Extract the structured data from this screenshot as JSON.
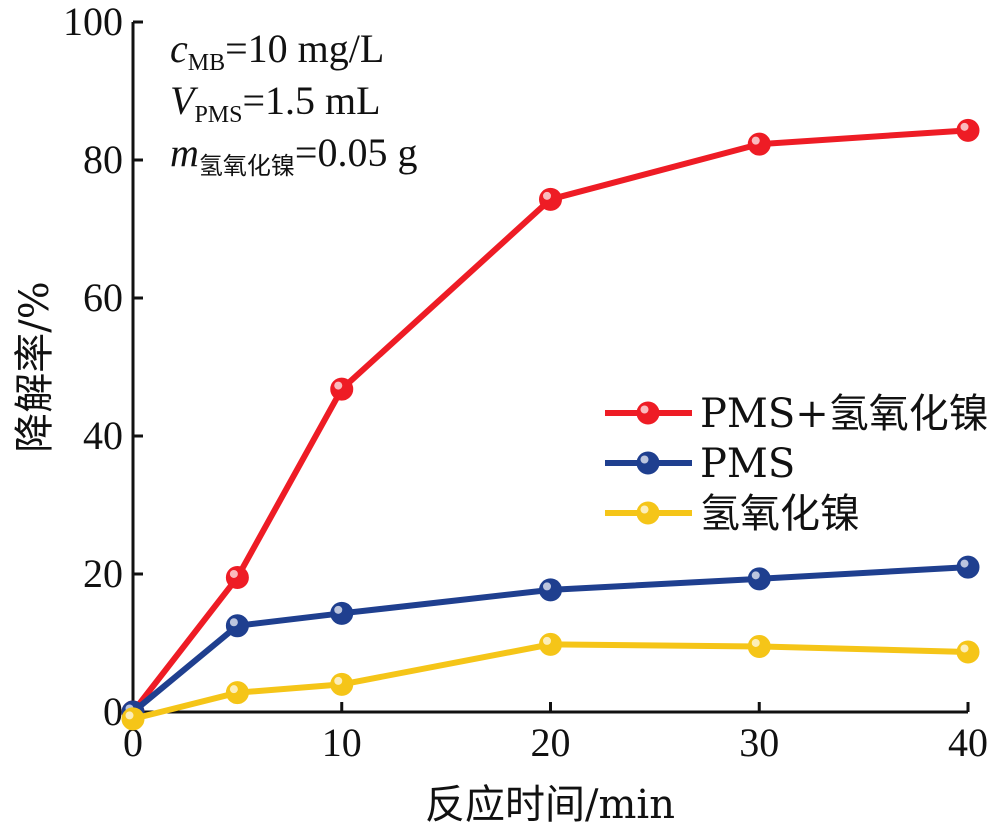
{
  "chart_data": {
    "type": "line",
    "xlabel": "反应时间/min",
    "ylabel": "降解率/%",
    "xlim": [
      0,
      40
    ],
    "ylim": [
      0,
      100
    ],
    "xticks": [
      "0",
      "10",
      "20",
      "30",
      "40"
    ],
    "yticks": [
      "0",
      "20",
      "40",
      "60",
      "80",
      "100"
    ],
    "grid": false,
    "legend_position": "center-right",
    "annotations": [
      {
        "var": "c",
        "sub": "MB",
        "rest": "=10 mg/L"
      },
      {
        "var": "V",
        "sub": "PMS",
        "rest": "=1.5 mL"
      },
      {
        "var": "m",
        "sub": "氢氧化镍",
        "rest": "=0.05 g"
      }
    ],
    "series": [
      {
        "name": "PMS+氢氧化镍",
        "color": "#ee1c25",
        "x": [
          0,
          5,
          10,
          20,
          30,
          40
        ],
        "y": [
          0,
          19.5,
          46.8,
          74.3,
          82.3,
          84.3
        ]
      },
      {
        "name": "PMS",
        "color": "#1f3f8f",
        "x": [
          0,
          5,
          10,
          20,
          30,
          40
        ],
        "y": [
          0,
          12.5,
          14.3,
          17.7,
          19.3,
          21.0
        ]
      },
      {
        "name": "氢氧化镍",
        "color": "#f5c518",
        "x": [
          0,
          5,
          10,
          20,
          30,
          40
        ],
        "y": [
          -1,
          2.8,
          4.0,
          9.8,
          9.5,
          8.7
        ]
      }
    ]
  }
}
